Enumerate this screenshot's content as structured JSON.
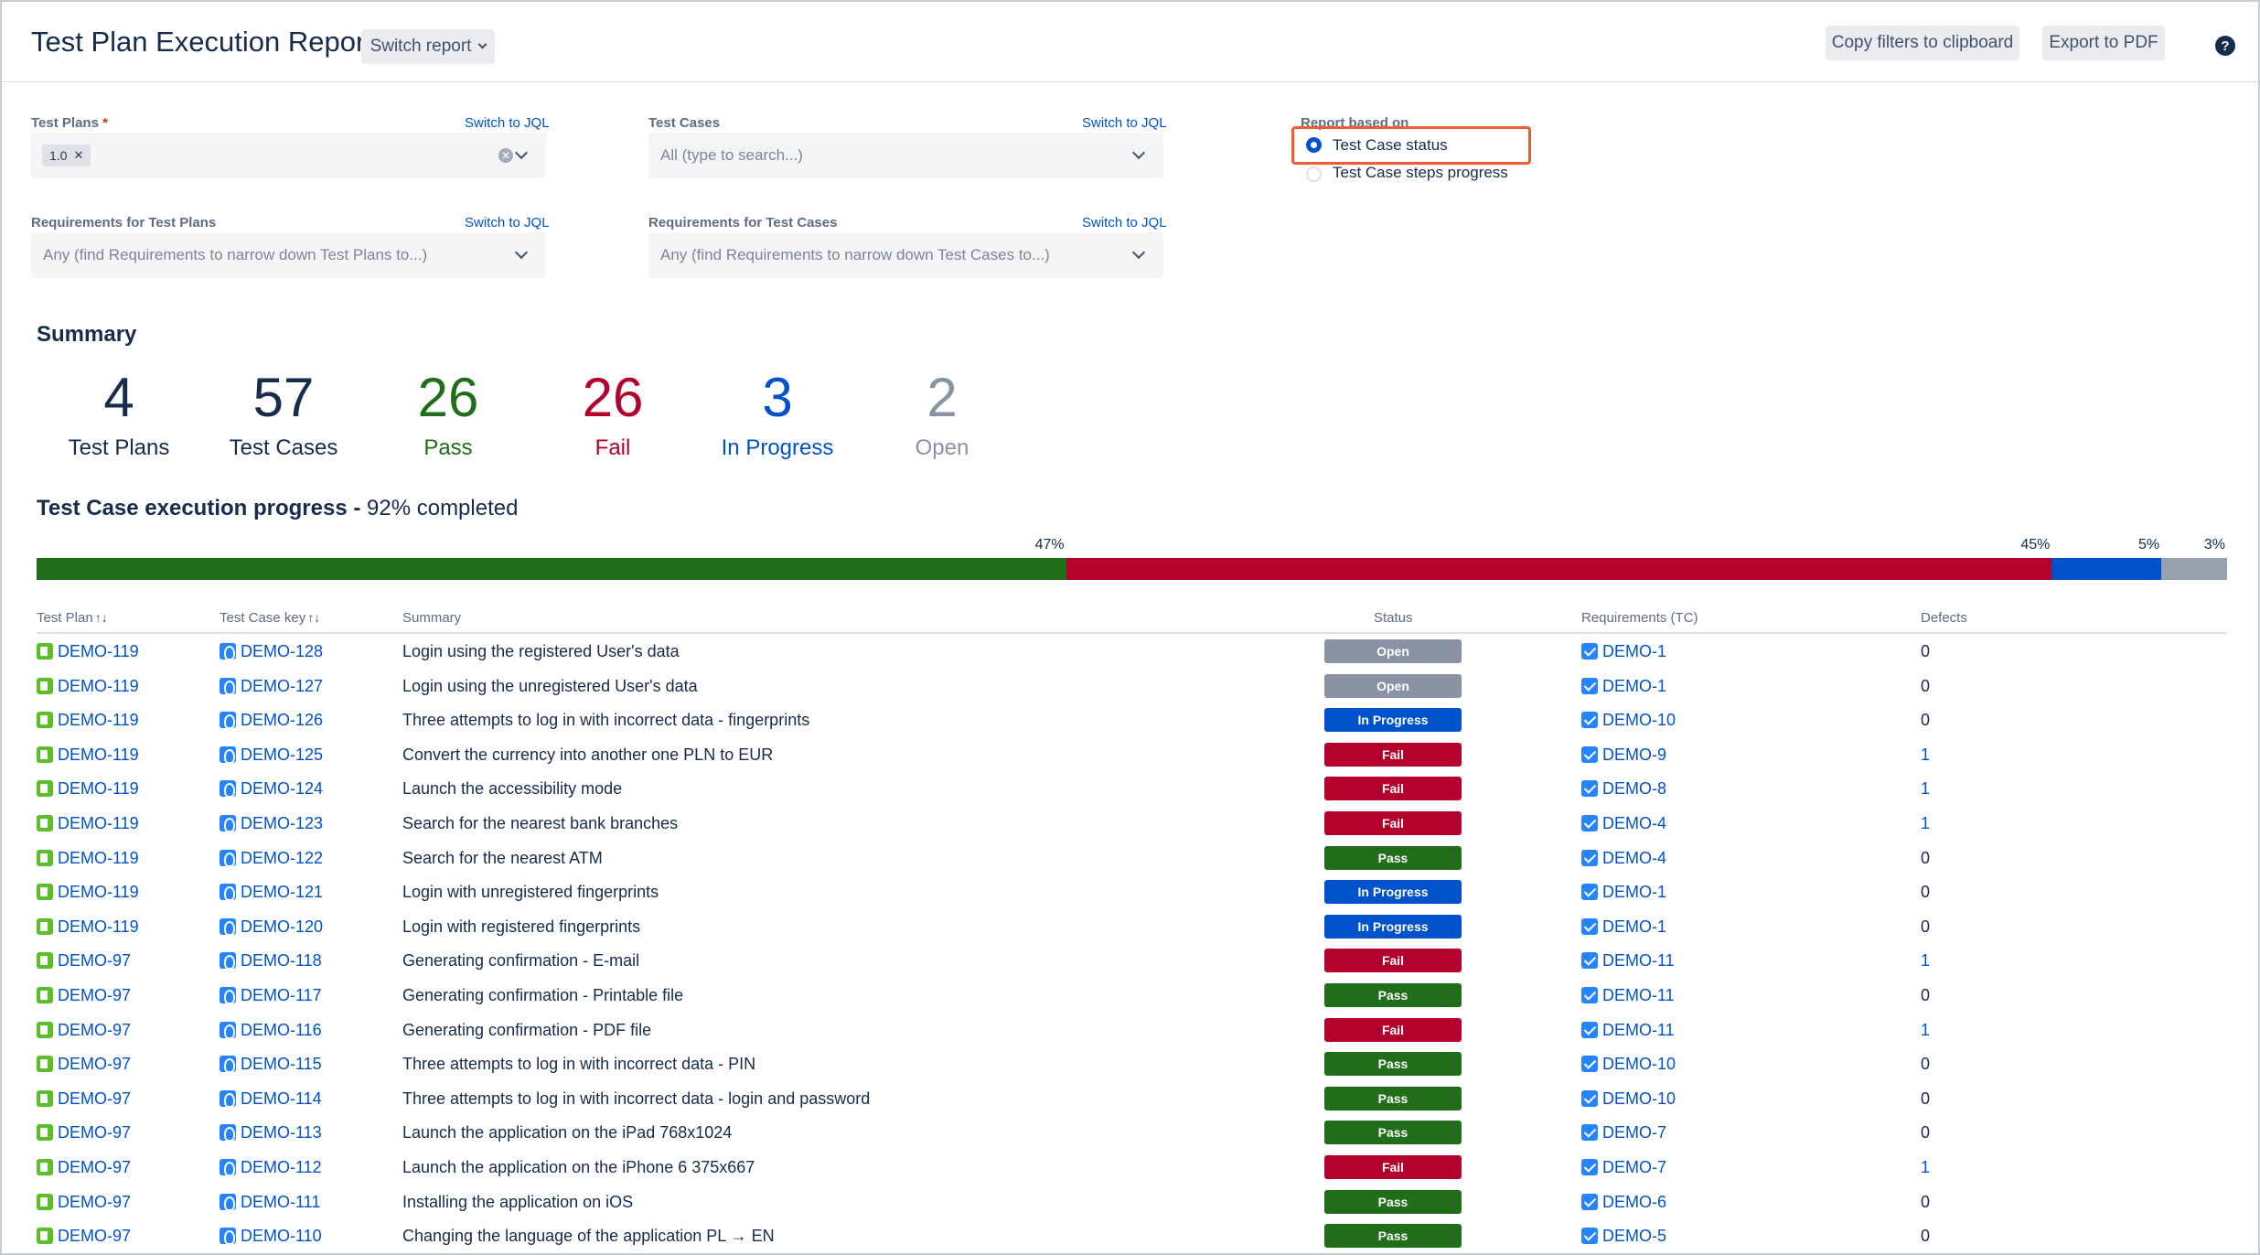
{
  "header": {
    "title": "Test Plan Execution Report",
    "switch_report": "Switch report",
    "copy_filters": "Copy filters to clipboard",
    "export_pdf": "Export to PDF",
    "help": "?"
  },
  "filters": {
    "test_plans_label": "Test Plans",
    "required_mark": "*",
    "test_plans_tag": "1.0",
    "test_cases_label": "Test Cases",
    "test_cases_placeholder": "All (type to search...)",
    "req_plans_label": "Requirements for Test Plans",
    "req_plans_placeholder": "Any (find Requirements to narrow down Test Plans to...)",
    "req_cases_label": "Requirements for Test Cases",
    "req_cases_placeholder": "Any (find Requirements to narrow down Test Cases to...)",
    "switch_jql": "Switch to JQL",
    "report_based_on": "Report based on",
    "option_status": "Test Case status",
    "option_steps": "Test Case steps progress",
    "selected_option": "Test Case status"
  },
  "summary": {
    "heading": "Summary",
    "stats": [
      {
        "value": "4",
        "label": "Test Plans",
        "color": "#172b4d"
      },
      {
        "value": "57",
        "label": "Test Cases",
        "color": "#172b4d"
      },
      {
        "value": "26",
        "label": "Pass",
        "color": "#216e1a"
      },
      {
        "value": "26",
        "label": "Fail",
        "color": "#b3002d"
      },
      {
        "value": "3",
        "label": "In Progress",
        "color": "#0052cc"
      },
      {
        "value": "2",
        "label": "Open",
        "color": "#8993a4"
      }
    ]
  },
  "progress": {
    "title_bold": "Test Case execution progress -",
    "title_rest": "92% completed",
    "segments": [
      {
        "label": "47%",
        "fraction": 0.47,
        "color": "#216e1a"
      },
      {
        "label": "45%",
        "fraction": 0.45,
        "color": "#b3002d"
      },
      {
        "label": "5%",
        "fraction": 0.05,
        "color": "#0052cc"
      },
      {
        "label": "3%",
        "fraction": 0.03,
        "color": "#97a0af"
      }
    ]
  },
  "table": {
    "columns": [
      "Test Plan",
      "Test Case key",
      "Summary",
      "Status",
      "Requirements (TC)",
      "Defects"
    ],
    "status_colors": {
      "Open": "#8993a4",
      "In Progress": "#0052cc",
      "Fail": "#b3002d",
      "Pass": "#216e1a"
    },
    "rows": [
      {
        "plan": "DEMO-119",
        "key": "DEMO-128",
        "summary": "Login using the registered User's data",
        "status": "Open",
        "req": "DEMO-1",
        "defects": "0"
      },
      {
        "plan": "DEMO-119",
        "key": "DEMO-127",
        "summary": "Login using the unregistered User's data",
        "status": "Open",
        "req": "DEMO-1",
        "defects": "0"
      },
      {
        "plan": "DEMO-119",
        "key": "DEMO-126",
        "summary": "Three attempts to log in with incorrect data - fingerprints",
        "status": "In Progress",
        "req": "DEMO-10",
        "defects": "0"
      },
      {
        "plan": "DEMO-119",
        "key": "DEMO-125",
        "summary": "Convert the currency into another one PLN to EUR",
        "status": "Fail",
        "req": "DEMO-9",
        "defects": "1"
      },
      {
        "plan": "DEMO-119",
        "key": "DEMO-124",
        "summary": "Launch the accessibility mode",
        "status": "Fail",
        "req": "DEMO-8",
        "defects": "1"
      },
      {
        "plan": "DEMO-119",
        "key": "DEMO-123",
        "summary": "Search for the nearest bank branches",
        "status": "Fail",
        "req": "DEMO-4",
        "defects": "1"
      },
      {
        "plan": "DEMO-119",
        "key": "DEMO-122",
        "summary": "Search for the nearest ATM",
        "status": "Pass",
        "req": "DEMO-4",
        "defects": "0"
      },
      {
        "plan": "DEMO-119",
        "key": "DEMO-121",
        "summary": "Login with unregistered fingerprints",
        "status": "In Progress",
        "req": "DEMO-1",
        "defects": "0"
      },
      {
        "plan": "DEMO-119",
        "key": "DEMO-120",
        "summary": "Login with registered fingerprints",
        "status": "In Progress",
        "req": "DEMO-1",
        "defects": "0"
      },
      {
        "plan": "DEMO-97",
        "key": "DEMO-118",
        "summary": "Generating confirmation - E-mail",
        "status": "Fail",
        "req": "DEMO-11",
        "defects": "1"
      },
      {
        "plan": "DEMO-97",
        "key": "DEMO-117",
        "summary": "Generating confirmation - Printable file",
        "status": "Pass",
        "req": "DEMO-11",
        "defects": "0"
      },
      {
        "plan": "DEMO-97",
        "key": "DEMO-116",
        "summary": "Generating confirmation - PDF file",
        "status": "Fail",
        "req": "DEMO-11",
        "defects": "1"
      },
      {
        "plan": "DEMO-97",
        "key": "DEMO-115",
        "summary": "Three attempts to log in with incorrect data - PIN",
        "status": "Pass",
        "req": "DEMO-10",
        "defects": "0"
      },
      {
        "plan": "DEMO-97",
        "key": "DEMO-114",
        "summary": "Three attempts to log in with incorrect data - login and password",
        "status": "Pass",
        "req": "DEMO-10",
        "defects": "0"
      },
      {
        "plan": "DEMO-97",
        "key": "DEMO-113",
        "summary": "Launch the application on the iPad 768x1024",
        "status": "Pass",
        "req": "DEMO-7",
        "defects": "0"
      },
      {
        "plan": "DEMO-97",
        "key": "DEMO-112",
        "summary": "Launch the application on the iPhone 6 375x667",
        "status": "Fail",
        "req": "DEMO-7",
        "defects": "1"
      },
      {
        "plan": "DEMO-97",
        "key": "DEMO-111",
        "summary": "Installing the application on iOS",
        "status": "Pass",
        "req": "DEMO-6",
        "defects": "0"
      },
      {
        "plan": "DEMO-97",
        "key": "DEMO-110",
        "summary": "Changing the language of the application PL → EN",
        "status": "Pass",
        "req": "DEMO-5",
        "defects": "0"
      }
    ]
  }
}
